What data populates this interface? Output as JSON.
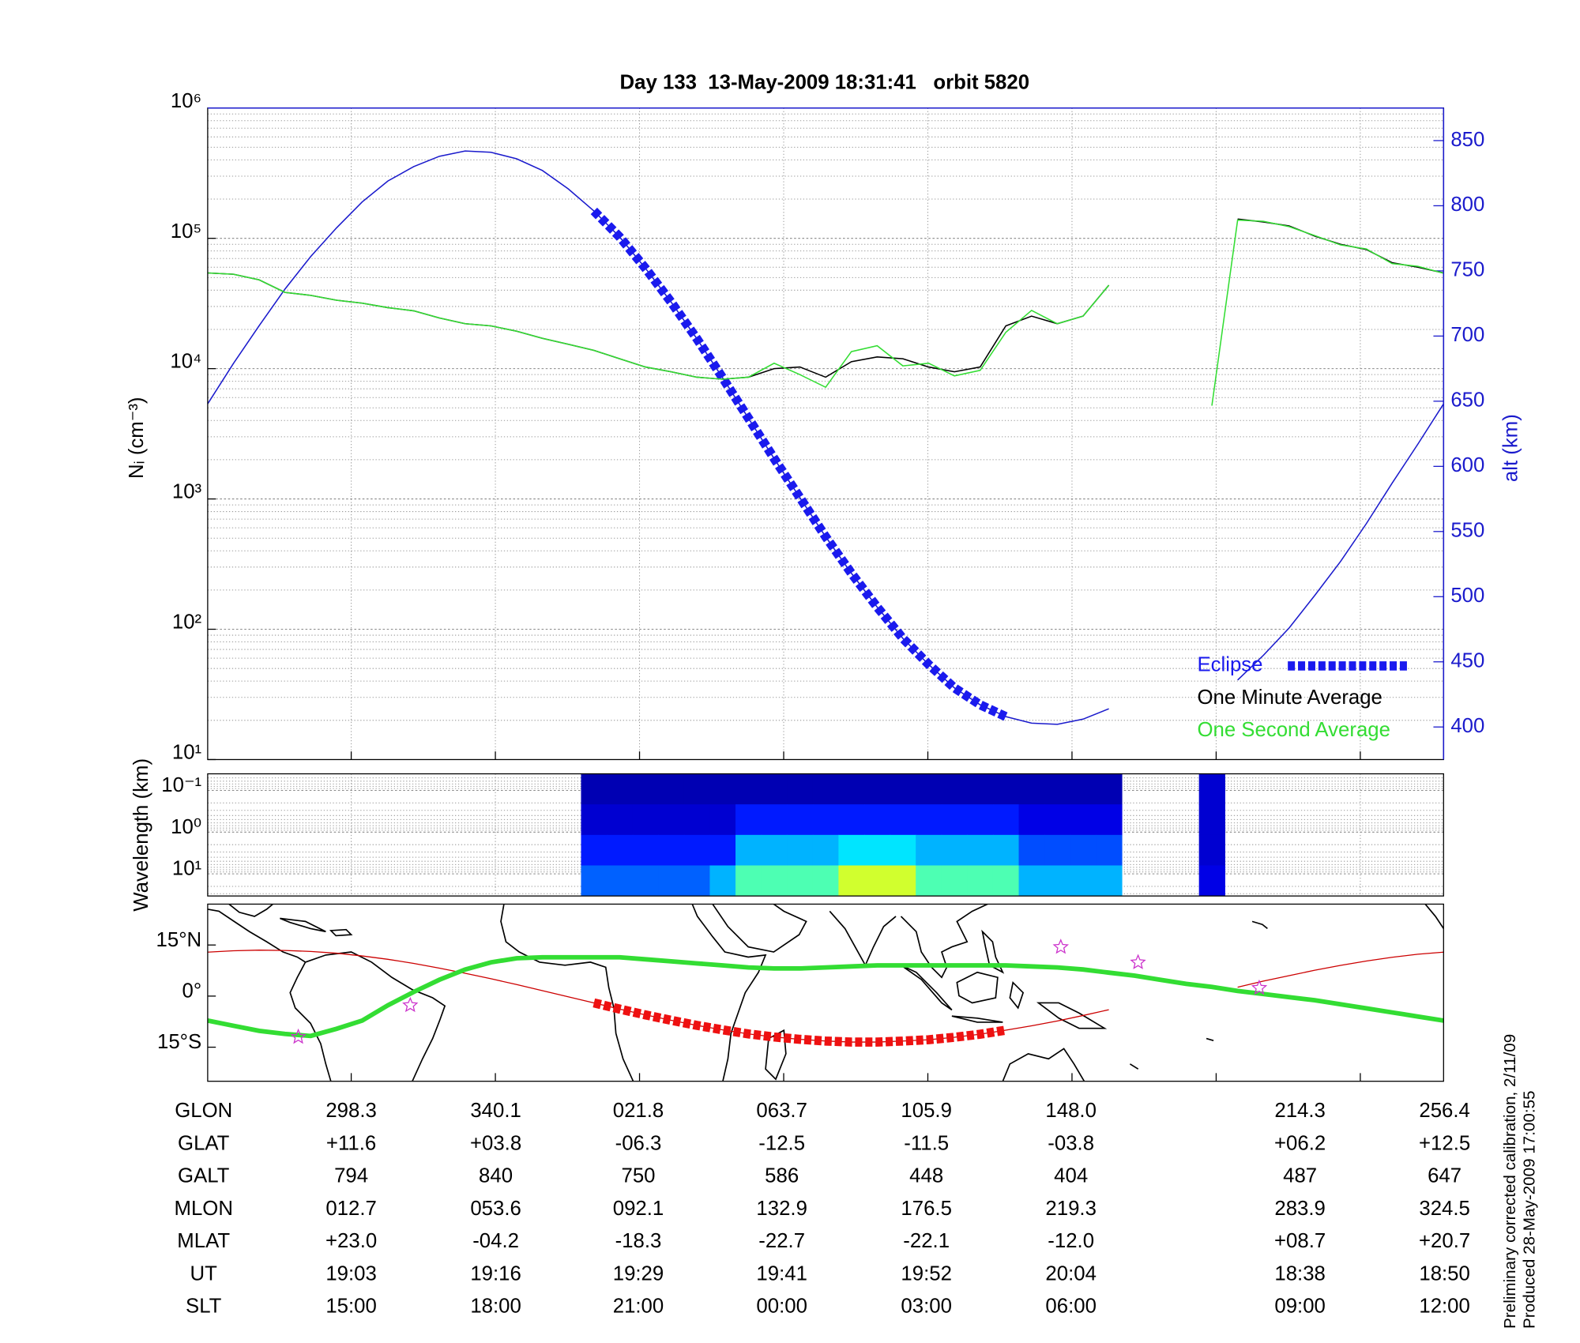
{
  "chart_data": [
    {
      "type": "line",
      "title": "Day 133  13-May-2009 18:31:41   orbit 5820",
      "ylabel": "Nᵢ (cm⁻³)",
      "y2label": "alt (km)",
      "log_y": true,
      "grid": true,
      "legend": "lower right",
      "ylim": [
        10,
        1000000
      ],
      "yticks": [
        {
          "value": 10,
          "label": "10¹"
        },
        {
          "value": 100,
          "label": "10²"
        },
        {
          "value": 1000,
          "label": "10³"
        },
        {
          "value": 10000,
          "label": "10⁴"
        },
        {
          "value": 100000,
          "label": "10⁵"
        },
        {
          "value": 1000000,
          "label": "10⁶"
        }
      ],
      "y2lim": [
        375,
        875
      ],
      "y2ticks": [
        400,
        450,
        500,
        550,
        600,
        650,
        700,
        750,
        800,
        850
      ],
      "y2color": "#1a1acc",
      "series": [
        {
          "axis": "y2",
          "color": "#1a1acc",
          "values": [
            648,
            679,
            708,
            736,
            761,
            783,
            803,
            819,
            830,
            838,
            842,
            841,
            836,
            827,
            813,
            796,
            776,
            752,
            726,
            698,
            668,
            637,
            606,
            576,
            546,
            518,
            492,
            468,
            448,
            430,
            417,
            408,
            403,
            402,
            406,
            414,
            null,
            null,
            null,
            null,
            436,
            455,
            476,
            501,
            527,
            556,
            587,
            617,
            648
          ]
        },
        {
          "name": "Eclipse",
          "axis": "y2",
          "color": "#1a1aee",
          "style": "squares",
          "values": [
            null,
            null,
            null,
            null,
            null,
            null,
            null,
            null,
            null,
            null,
            null,
            null,
            null,
            null,
            null,
            796,
            776,
            752,
            726,
            698,
            668,
            637,
            606,
            576,
            546,
            518,
            492,
            468,
            448,
            430,
            417,
            408,
            null,
            null,
            null,
            null,
            null,
            null,
            null,
            null,
            null,
            null,
            null,
            null,
            null,
            null,
            null,
            null,
            null
          ]
        },
        {
          "name": "One Minute Average",
          "color": "#000000",
          "values": [
            54200,
            53000,
            48000,
            38500,
            36500,
            33500,
            31800,
            29400,
            27800,
            24500,
            22100,
            21300,
            19400,
            17100,
            15400,
            13800,
            11900,
            10300,
            9450,
            8600,
            8300,
            8600,
            10000,
            10300,
            8600,
            11300,
            12300,
            11900,
            10300,
            9450,
            10300,
            21300,
            25300,
            22100,
            25300,
            43700,
            null,
            null,
            null,
            null,
            140600,
            133500,
            124500,
            104000,
            90000,
            82000,
            65000,
            60000,
            54200
          ]
        },
        {
          "name": "One Second Average",
          "color": "#33dd33",
          "values": [
            54200,
            53000,
            48000,
            38500,
            36500,
            33500,
            31800,
            29400,
            27800,
            24500,
            22100,
            21300,
            19400,
            17100,
            15400,
            13800,
            11900,
            10300,
            9450,
            8600,
            8300,
            8600,
            11000,
            9000,
            7200,
            13500,
            15000,
            10500,
            11000,
            8800,
            9700,
            19000,
            28000,
            22100,
            25300,
            43700,
            null,
            null,
            null,
            5200,
            138000,
            135000,
            123000,
            105000,
            89000,
            83000,
            64000,
            61000,
            54000
          ]
        }
      ]
    },
    {
      "type": "heatmap",
      "ylabel": "Wavelength (km)",
      "log_y": true,
      "ylim": [
        34,
        0.04
      ],
      "yticks": [
        {
          "value": 0.1,
          "label": "10⁻¹"
        },
        {
          "value": 1,
          "label": "10⁰"
        },
        {
          "value": 10,
          "label": "10¹"
        }
      ],
      "z": [
        [
          null,
          null,
          null,
          null,
          null,
          null,
          null,
          null,
          null,
          null,
          null,
          null,
          null,
          null,
          null,
          0.05,
          0.05,
          0.05,
          0.05,
          0.05,
          0.05,
          0.05,
          0.05,
          0.05,
          0.05,
          0.05,
          0.05,
          0.05,
          0.05,
          0.05,
          0.05,
          0.05,
          0.05,
          0.05,
          0.05,
          0.05,
          null,
          null,
          null,
          0.08,
          null,
          null,
          null,
          null,
          null,
          null,
          null,
          null,
          null
        ],
        [
          null,
          null,
          null,
          null,
          null,
          null,
          null,
          null,
          null,
          null,
          null,
          null,
          null,
          null,
          null,
          0.08,
          0.08,
          0.08,
          0.08,
          0.08,
          0.08,
          0.15,
          0.15,
          0.15,
          0.15,
          0.15,
          0.15,
          0.15,
          0.15,
          0.15,
          0.15,
          0.15,
          0.1,
          0.1,
          0.1,
          0.1,
          null,
          null,
          null,
          0.08,
          null,
          null,
          null,
          null,
          null,
          null,
          null,
          null,
          null
        ],
        [
          null,
          null,
          null,
          null,
          null,
          null,
          null,
          null,
          null,
          null,
          null,
          null,
          null,
          null,
          null,
          0.15,
          0.15,
          0.15,
          0.15,
          0.15,
          0.15,
          0.3,
          0.3,
          0.3,
          0.3,
          0.35,
          0.35,
          0.35,
          0.3,
          0.3,
          0.3,
          0.3,
          0.2,
          0.2,
          0.2,
          0.2,
          null,
          null,
          null,
          0.08,
          null,
          null,
          null,
          null,
          null,
          null,
          null,
          null,
          null
        ],
        [
          null,
          null,
          null,
          null,
          null,
          null,
          null,
          null,
          null,
          null,
          null,
          null,
          null,
          null,
          null,
          0.22,
          0.22,
          0.22,
          0.22,
          0.22,
          0.3,
          0.45,
          0.45,
          0.45,
          0.45,
          0.58,
          0.58,
          0.58,
          0.45,
          0.45,
          0.45,
          0.45,
          0.3,
          0.3,
          0.3,
          0.3,
          null,
          null,
          null,
          0.1,
          null,
          null,
          null,
          null,
          null,
          null,
          null,
          null,
          null
        ]
      ]
    },
    {
      "type": "map",
      "ylim": [
        -25,
        27
      ],
      "yticks": [
        {
          "value": 15,
          "label": "15°N"
        },
        {
          "value": 0,
          "label": "0°"
        },
        {
          "value": -15,
          "label": "15°S"
        }
      ],
      "series": [
        {
          "color": "#cc0000",
          "values": [
            12.9,
            13.3,
            13.5,
            13.4,
            13.1,
            12.6,
            11.8,
            10.8,
            9.6,
            8.2,
            6.7,
            5.1,
            3.4,
            1.6,
            -0.2,
            -2.0,
            -3.8,
            -5.5,
            -7.1,
            -8.6,
            -9.9,
            -11.1,
            -12.0,
            -12.7,
            -13.2,
            -13.5,
            -13.5,
            -13.2,
            -12.8,
            -12.1,
            -11.2,
            -10.0,
            -8.7,
            -7.3,
            -5.7,
            -4.0,
            null,
            null,
            null,
            null,
            2.6,
            4.4,
            6.0,
            7.6,
            9.0,
            10.3,
            11.4,
            12.3,
            12.9
          ]
        },
        {
          "color": "#ee1111",
          "style": "squares",
          "values": [
            null,
            null,
            null,
            null,
            null,
            null,
            null,
            null,
            null,
            null,
            null,
            null,
            null,
            null,
            null,
            -2.0,
            -3.8,
            -5.5,
            -7.1,
            -8.6,
            -9.9,
            -11.1,
            -12.0,
            -12.7,
            -13.2,
            -13.5,
            -13.5,
            -13.2,
            -12.8,
            -12.1,
            -11.2,
            -10.0,
            null,
            null,
            null,
            null,
            null,
            null,
            null,
            null,
            null,
            null,
            null,
            null,
            null,
            null,
            null,
            null,
            null
          ]
        },
        {
          "color": "#33dd33",
          "values": [
            -7.2,
            -8.7,
            -10.2,
            -11.1,
            -11.7,
            -9.6,
            -7.2,
            -2.7,
            1.2,
            4.8,
            7.8,
            9.9,
            11.1,
            11.4,
            11.4,
            11.4,
            11.4,
            10.8,
            10.2,
            9.6,
            9.0,
            8.4,
            8.1,
            8.1,
            8.4,
            8.7,
            9.0,
            9.0,
            9.0,
            9.0,
            9.0,
            9.0,
            8.7,
            8.4,
            7.8,
            6.9,
            6.0,
            4.8,
            3.6,
            2.7,
            1.5,
            0.6,
            -0.3,
            -1.2,
            -2.4,
            -3.6,
            -4.8,
            -6.0,
            -7.2
          ]
        }
      ],
      "points": {
        "color": "#cc33cc",
        "lon": [
          282.8,
          315.4,
          144.9,
          167.4,
          202.7
        ],
        "lat": [
          -12.0,
          -2.7,
          14.4,
          9.9,
          2.4
        ]
      }
    }
  ],
  "table": {
    "rows": [
      {
        "label": "GLON",
        "values": [
          "298.3",
          "340.1",
          "021.8",
          "063.7",
          "105.9",
          "148.0",
          "214.3",
          "256.4"
        ]
      },
      {
        "label": "GLAT",
        "values": [
          "+11.6",
          "+03.8",
          "-06.3",
          "-12.5",
          "-11.5",
          "-03.8",
          "+06.2",
          "+12.5"
        ]
      },
      {
        "label": "GALT",
        "values": [
          "794",
          "840",
          "750",
          "586",
          "448",
          "404",
          "487",
          "647"
        ]
      },
      {
        "label": "MLON",
        "values": [
          "012.7",
          "053.6",
          "092.1",
          "132.9",
          "176.5",
          "219.3",
          "283.9",
          "324.5"
        ]
      },
      {
        "label": "MLAT",
        "values": [
          "+23.0",
          "-04.2",
          "-18.3",
          "-22.7",
          "-22.1",
          "-12.0",
          "+08.7",
          "+20.7"
        ]
      },
      {
        "label": "UT",
        "values": [
          "19:03",
          "19:16",
          "19:29",
          "19:41",
          "19:52",
          "20:04",
          "18:38",
          "18:50"
        ]
      },
      {
        "label": "SLT",
        "values": [
          "15:00",
          "18:00",
          "21:00",
          "00:00",
          "03:00",
          "06:00",
          "09:00",
          "12:00"
        ]
      }
    ]
  },
  "footnote": [
    "Preliminary corrected calibration, 2/11/09",
    "Produced 28-May-2009 17:00:55"
  ]
}
